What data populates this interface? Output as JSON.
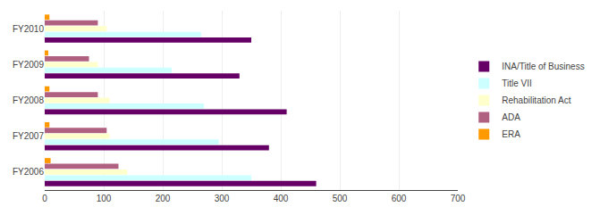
{
  "chart_data": {
    "type": "bar",
    "orientation": "horizontal",
    "categories": [
      "FY2010",
      "FY2009",
      "FY2008",
      "FY2007",
      "FY2006"
    ],
    "series": [
      {
        "name": "INA/Title of Business",
        "color": "#660066",
        "values": [
          350,
          330,
          410,
          380,
          460
        ]
      },
      {
        "name": "Title VII",
        "color": "#ccffff",
        "values": [
          265,
          215,
          270,
          295,
          350
        ]
      },
      {
        "name": "Rehabilitation Act",
        "color": "#ffffcc",
        "values": [
          105,
          90,
          110,
          110,
          140
        ]
      },
      {
        "name": "ADA",
        "color": "#b06080",
        "values": [
          90,
          75,
          90,
          105,
          125
        ]
      },
      {
        "name": "ERA",
        "color": "#ff9900",
        "values": [
          8,
          6,
          8,
          8,
          10
        ]
      }
    ],
    "xlim": [
      0,
      700
    ],
    "xticks": [
      0,
      100,
      200,
      300,
      400,
      500,
      600,
      700
    ],
    "grid": true,
    "legend": "right"
  }
}
